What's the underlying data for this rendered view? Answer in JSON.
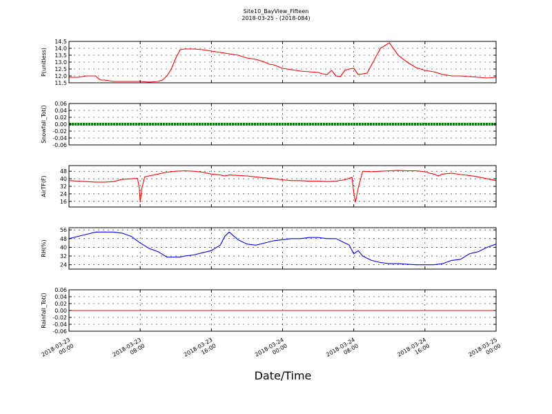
{
  "chart_data": {
    "type": "line",
    "title": "Site10_BayView_Fifteen",
    "subtitle": "2018-03-25 - (2018-084)",
    "xlabel": "Date/Time",
    "x_tick_labels": [
      [
        "2018-03-23",
        "00:00"
      ],
      [
        "2018-03-23",
        "08:00"
      ],
      [
        "2018-03-23",
        "16:00"
      ],
      [
        "2018-03-24",
        "00:00"
      ],
      [
        "2018-03-24",
        "08:00"
      ],
      [
        "2018-03-24",
        "16:00"
      ],
      [
        "2018-03-25",
        "00:00"
      ]
    ],
    "x_range_hours": [
      0,
      48
    ],
    "grid": true,
    "panels": [
      {
        "ylabel": "P(unitless)",
        "color": "#ff0000",
        "ylim": [
          11.5,
          14.5
        ],
        "yticks": [
          11.5,
          12.0,
          12.5,
          13.0,
          13.5,
          14.0,
          14.5
        ],
        "ytick_labels": [
          "11.5",
          "12.0",
          "12.5",
          "13.0",
          "13.5",
          "14.0",
          "14.5"
        ],
        "series": {
          "x": [
            0,
            1,
            2,
            2.5,
            3,
            3.3,
            3.6,
            4,
            5,
            6,
            7,
            8,
            9,
            10,
            10.5,
            11,
            11.5,
            12,
            12.5,
            13,
            14,
            15,
            16,
            17,
            18,
            19,
            20,
            21,
            22,
            22.5,
            23,
            24,
            25,
            26,
            27,
            28,
            28.5,
            29,
            29.5,
            30,
            30.5,
            31,
            31.5,
            32,
            32.5,
            33,
            33.5,
            34,
            35,
            36,
            37,
            38,
            39,
            40,
            41,
            42,
            43,
            44,
            45,
            46,
            47,
            48
          ],
          "y": [
            11.9,
            11.9,
            12.0,
            12.0,
            12.0,
            11.8,
            11.7,
            11.7,
            11.6,
            11.6,
            11.6,
            11.6,
            11.55,
            11.6,
            11.7,
            12.0,
            12.5,
            13.3,
            13.9,
            13.95,
            13.95,
            13.9,
            13.8,
            13.7,
            13.6,
            13.5,
            13.3,
            13.2,
            13.0,
            12.85,
            12.8,
            12.55,
            12.45,
            12.35,
            12.3,
            12.25,
            12.15,
            12.1,
            12.4,
            12.0,
            11.95,
            12.4,
            12.5,
            12.55,
            12.1,
            12.15,
            12.2,
            12.8,
            14.0,
            14.4,
            13.5,
            13.0,
            12.6,
            12.4,
            12.3,
            12.1,
            12.0,
            12.0,
            11.95,
            11.9,
            11.85,
            11.9
          ]
        }
      },
      {
        "ylabel": "Snowfall_Tot()",
        "color": "#008000",
        "ylim": [
          -0.06,
          0.06
        ],
        "yticks": [
          -0.06,
          -0.04,
          -0.02,
          0.0,
          0.02,
          0.04,
          0.06
        ],
        "ytick_labels": [
          "-0.06",
          "-0.04",
          "-0.02",
          "0.00",
          "0.02",
          "0.04",
          "0.06"
        ],
        "series": {
          "x": [
            0,
            48
          ],
          "y": [
            0,
            0
          ]
        }
      },
      {
        "ylabel": "AirTF(F)",
        "color": "#ff0000",
        "ylim": [
          10,
          54
        ],
        "yticks": [
          16,
          24,
          32,
          40,
          48
        ],
        "ytick_labels": [
          "16",
          "24",
          "32",
          "40",
          "48"
        ],
        "series": {
          "x": [
            0,
            1,
            2,
            3,
            4,
            5,
            6,
            7,
            7.7,
            7.9,
            8.0,
            8.2,
            8.5,
            9,
            10,
            11,
            12,
            13,
            14,
            15,
            16,
            17,
            17.5,
            18,
            19,
            20,
            21,
            22,
            23,
            24,
            25,
            26,
            27,
            28,
            29,
            30,
            31,
            31.5,
            31.8,
            32.0,
            32.2,
            32.5,
            33,
            34,
            35,
            36,
            37,
            38,
            39,
            40,
            40.5,
            41,
            41.5,
            42,
            43,
            44,
            45,
            46,
            47,
            48
          ],
          "y": [
            38,
            37.5,
            37,
            36.5,
            36.5,
            37,
            39.5,
            40,
            40.5,
            30,
            15,
            30,
            42,
            43,
            45,
            47,
            48,
            48.5,
            48,
            47,
            45,
            44,
            43,
            44,
            43.5,
            43,
            42,
            41,
            40,
            39,
            38,
            38,
            37.5,
            37.5,
            37,
            37.5,
            39,
            40.5,
            41.5,
            25,
            15,
            30,
            48,
            47.5,
            48,
            48.5,
            48.8,
            48.5,
            48.5,
            47.5,
            46,
            45,
            43,
            45,
            46,
            44.5,
            43.5,
            42,
            40,
            38
          ]
        }
      },
      {
        "ylabel": "RH(%)",
        "color": "#0000ff",
        "ylim": [
          20,
          58
        ],
        "yticks": [
          24,
          32,
          40,
          48,
          56
        ],
        "ytick_labels": [
          "24",
          "32",
          "40",
          "48",
          "56"
        ],
        "series": {
          "x": [
            0,
            1,
            2,
            3,
            4,
            5,
            6,
            7,
            7.5,
            8,
            9,
            10,
            11,
            12,
            12.5,
            13,
            14,
            15,
            16,
            17,
            17.5,
            18,
            19,
            20,
            21,
            22,
            23,
            24,
            25,
            26,
            27,
            28,
            29,
            30,
            31,
            31.5,
            32,
            32.5,
            33,
            34,
            35,
            36,
            37,
            38,
            39,
            40,
            41,
            42,
            43,
            44,
            45,
            46,
            47,
            48
          ],
          "y": [
            48,
            50,
            52,
            54,
            54,
            54,
            53,
            50,
            47,
            44,
            39,
            36,
            31,
            31,
            31,
            32,
            33,
            35,
            37,
            42,
            50,
            54,
            47,
            43,
            42,
            44,
            46,
            47,
            48,
            48,
            49,
            49,
            48,
            48,
            44,
            42,
            34,
            37,
            32,
            28,
            26,
            25,
            25,
            24.5,
            24,
            24,
            24,
            25,
            28,
            29,
            34,
            36,
            40,
            43
          ]
        }
      },
      {
        "ylabel": "Rainfall_Tot()",
        "color": "#ff0000",
        "ylim": [
          -0.06,
          0.06
        ],
        "yticks": [
          -0.06,
          -0.04,
          -0.02,
          0.0,
          0.02,
          0.04,
          0.06
        ],
        "ytick_labels": [
          "-0.06",
          "-0.04",
          "-0.02",
          "0.00",
          "0.02",
          "0.04",
          "0.06"
        ],
        "series": {
          "x": [
            0,
            48
          ],
          "y": [
            0,
            0
          ]
        }
      }
    ]
  }
}
